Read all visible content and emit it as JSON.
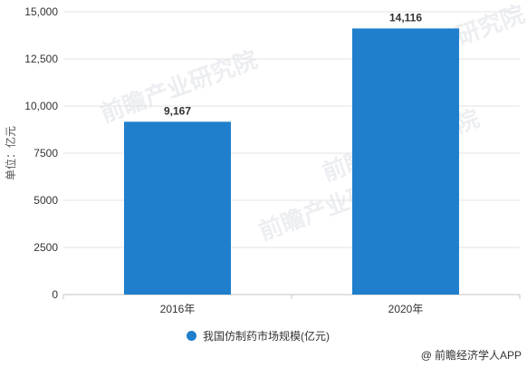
{
  "chart_data": {
    "type": "bar",
    "categories": [
      "2016年",
      "2020年"
    ],
    "series": [
      {
        "name": "我国仿制药市场规模(亿元)",
        "values": [
          9167,
          14116
        ],
        "color": "#1f7fcc"
      }
    ],
    "data_labels": [
      "9,167",
      "14,116"
    ],
    "ylabel": "单位：亿元",
    "ylim": [
      0,
      15000
    ],
    "yticks": [
      0,
      2500,
      5000,
      7500,
      10000,
      12500,
      15000
    ],
    "ytick_labels": [
      "0",
      "2500",
      "5000",
      "7500",
      "10,000",
      "12,500",
      "15,000"
    ],
    "grid": true,
    "legend_position": "bottom"
  },
  "legend": {
    "label": "我国仿制药市场规模(亿元)"
  },
  "credit": {
    "text": "前瞻经济学人APP"
  },
  "watermark": {
    "text": "前瞻产业研究院"
  }
}
